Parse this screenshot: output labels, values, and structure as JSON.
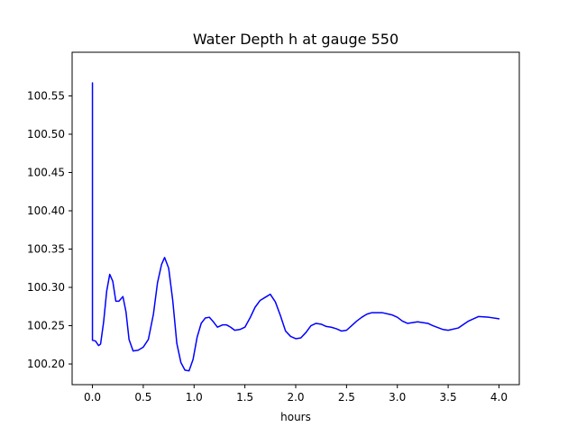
{
  "chart_data": {
    "type": "line",
    "title": "Water Depth h at gauge 550",
    "xlabel": "hours",
    "ylabel": "",
    "xlim": [
      -0.2,
      4.2
    ],
    "ylim": [
      100.173,
      100.607
    ],
    "xticks": [
      0.0,
      0.5,
      1.0,
      1.5,
      2.0,
      2.5,
      3.0,
      3.5,
      4.0
    ],
    "xtick_labels": [
      "0.0",
      "0.5",
      "1.0",
      "1.5",
      "2.0",
      "2.5",
      "3.0",
      "3.5",
      "4.0"
    ],
    "yticks": [
      100.2,
      100.25,
      100.3,
      100.35,
      100.4,
      100.45,
      100.5,
      100.55
    ],
    "ytick_labels": [
      "100.20",
      "100.25",
      "100.30",
      "100.35",
      "100.40",
      "100.45",
      "100.50",
      "100.55"
    ],
    "grid": false,
    "series": [
      {
        "color": "#0000ff",
        "points": [
          [
            0.0,
            100.231
          ],
          [
            0.0,
            100.567
          ],
          [
            0.0,
            100.231
          ],
          [
            0.03,
            100.23
          ],
          [
            0.06,
            100.224
          ],
          [
            0.08,
            100.226
          ],
          [
            0.11,
            100.255
          ],
          [
            0.14,
            100.295
          ],
          [
            0.17,
            100.317
          ],
          [
            0.2,
            100.308
          ],
          [
            0.23,
            100.282
          ],
          [
            0.26,
            100.282
          ],
          [
            0.3,
            100.288
          ],
          [
            0.33,
            100.268
          ],
          [
            0.36,
            100.232
          ],
          [
            0.4,
            100.217
          ],
          [
            0.45,
            100.218
          ],
          [
            0.5,
            100.222
          ],
          [
            0.55,
            100.232
          ],
          [
            0.6,
            100.265
          ],
          [
            0.64,
            100.306
          ],
          [
            0.68,
            100.33
          ],
          [
            0.71,
            100.339
          ],
          [
            0.75,
            100.325
          ],
          [
            0.79,
            100.283
          ],
          [
            0.83,
            100.227
          ],
          [
            0.87,
            100.202
          ],
          [
            0.91,
            100.192
          ],
          [
            0.95,
            100.191
          ],
          [
            0.99,
            100.206
          ],
          [
            1.03,
            100.235
          ],
          [
            1.07,
            100.253
          ],
          [
            1.11,
            100.26
          ],
          [
            1.15,
            100.261
          ],
          [
            1.19,
            100.255
          ],
          [
            1.23,
            100.248
          ],
          [
            1.28,
            100.251
          ],
          [
            1.32,
            100.251
          ],
          [
            1.36,
            100.248
          ],
          [
            1.4,
            100.244
          ],
          [
            1.45,
            100.245
          ],
          [
            1.5,
            100.248
          ],
          [
            1.55,
            100.26
          ],
          [
            1.6,
            100.274
          ],
          [
            1.65,
            100.283
          ],
          [
            1.7,
            100.287
          ],
          [
            1.75,
            100.291
          ],
          [
            1.8,
            100.281
          ],
          [
            1.85,
            100.263
          ],
          [
            1.9,
            100.243
          ],
          [
            1.95,
            100.236
          ],
          [
            2.0,
            100.233
          ],
          [
            2.05,
            100.234
          ],
          [
            2.1,
            100.241
          ],
          [
            2.15,
            100.25
          ],
          [
            2.2,
            100.253
          ],
          [
            2.25,
            100.252
          ],
          [
            2.3,
            100.249
          ],
          [
            2.35,
            100.248
          ],
          [
            2.4,
            100.246
          ],
          [
            2.45,
            100.243
          ],
          [
            2.5,
            100.244
          ],
          [
            2.55,
            100.25
          ],
          [
            2.6,
            100.256
          ],
          [
            2.65,
            100.261
          ],
          [
            2.7,
            100.265
          ],
          [
            2.75,
            100.267
          ],
          [
            2.85,
            100.267
          ],
          [
            2.95,
            100.264
          ],
          [
            3.0,
            100.261
          ],
          [
            3.05,
            100.256
          ],
          [
            3.1,
            100.253
          ],
          [
            3.2,
            100.255
          ],
          [
            3.3,
            100.253
          ],
          [
            3.35,
            100.25
          ],
          [
            3.45,
            100.245
          ],
          [
            3.5,
            100.244
          ],
          [
            3.6,
            100.247
          ],
          [
            3.7,
            100.256
          ],
          [
            3.8,
            100.262
          ],
          [
            3.9,
            100.261
          ],
          [
            4.0,
            100.259
          ]
        ]
      }
    ]
  }
}
